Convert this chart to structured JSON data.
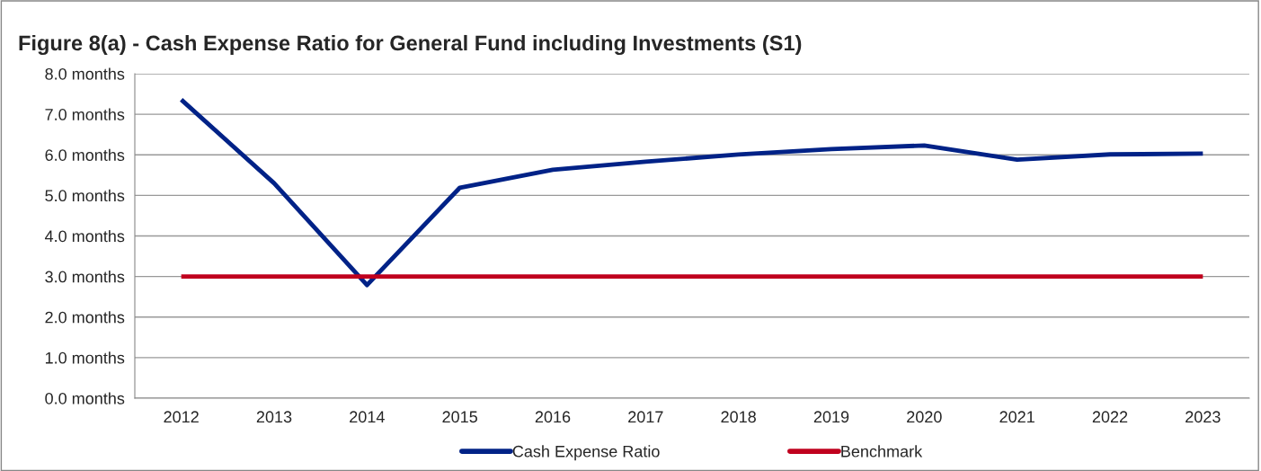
{
  "chart_data": {
    "type": "line",
    "title": "Figure 8(a) - Cash Expense Ratio for General Fund including Investments (S1)",
    "categories": [
      "2012",
      "2013",
      "2014",
      "2015",
      "2016",
      "2017",
      "2018",
      "2019",
      "2020",
      "2021",
      "2022",
      "2023"
    ],
    "series": [
      {
        "name": "Cash Expense Ratio",
        "color": "#002287",
        "values": [
          7.36,
          5.3,
          2.79,
          5.19,
          5.63,
          5.83,
          6.01,
          6.14,
          6.23,
          5.88,
          6.01,
          6.03
        ]
      },
      {
        "name": "Benchmark",
        "color": "#c0001e",
        "values": [
          3.0,
          3.0,
          3.0,
          3.0,
          3.0,
          3.0,
          3.0,
          3.0,
          3.0,
          3.0,
          3.0,
          3.0
        ]
      }
    ],
    "ylim": [
      0,
      8
    ],
    "yticks": [
      {
        "value": 0,
        "label": "0.0 months"
      },
      {
        "value": 1,
        "label": "1.0 months"
      },
      {
        "value": 2,
        "label": "2.0 months"
      },
      {
        "value": 3,
        "label": "3.0 months"
      },
      {
        "value": 4,
        "label": "4.0 months"
      },
      {
        "value": 5,
        "label": "5.0 months"
      },
      {
        "value": 6,
        "label": "6.0 months"
      },
      {
        "value": 7,
        "label": "7.0 months"
      },
      {
        "value": 8,
        "label": "8.0 months"
      }
    ],
    "grid": "y",
    "legend": "bottom",
    "marker": "none",
    "line_style": "solid"
  }
}
